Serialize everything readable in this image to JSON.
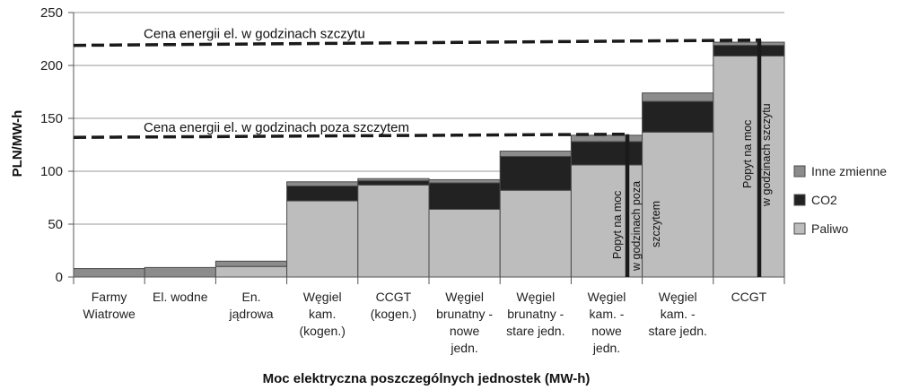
{
  "chart_data": {
    "type": "bar",
    "stacked": true,
    "variable_width": true,
    "title": "",
    "xlabel": "Moc elektryczna poszczególnych jednostek (MW-h)",
    "ylabel": "PLN/MW-h",
    "ylim": [
      0,
      250
    ],
    "yticks": [
      0,
      50,
      100,
      150,
      200,
      250
    ],
    "grid": true,
    "legend_position": "right",
    "categories": [
      [
        "Farmy",
        "Wiatrowe"
      ],
      [
        "El. wodne"
      ],
      [
        "En.",
        "jądrowa"
      ],
      [
        "Węgiel",
        "kam.",
        "(kogen.)"
      ],
      [
        "CCGT",
        "(kogen.)"
      ],
      [
        "Węgiel",
        "brunatny -",
        "nowe",
        "jedn."
      ],
      [
        "Węgiel",
        "brunatny -",
        "stare jedn."
      ],
      [
        "Węgiel",
        "kam. -",
        "nowe",
        "jedn."
      ],
      [
        "Węgiel",
        "kam. -",
        "stare jedn."
      ],
      [
        "CCGT"
      ]
    ],
    "series": [
      {
        "name": "Paliwo",
        "color": "#bdbdbd",
        "values": [
          0,
          0,
          10,
          72,
          87,
          64,
          82,
          106,
          137,
          209
        ]
      },
      {
        "name": "CO2",
        "color": "#222222",
        "values": [
          0,
          0,
          0,
          14,
          4,
          25,
          32,
          22,
          29,
          10
        ]
      },
      {
        "name": "Inne zmienne",
        "color": "#8c8c8c",
        "values": [
          8,
          9,
          5,
          4,
          2,
          3,
          5,
          6,
          8,
          3
        ]
      }
    ],
    "legend_order": [
      "Inne zmienne",
      "CO2",
      "Paliwo"
    ],
    "annotations": [
      {
        "text": "Cena energii el. w godzinach szczytu",
        "type": "dashed-line",
        "y_start": 219,
        "y_end": 224
      },
      {
        "text": "Cena energii el. w godzinach poza szczytem",
        "type": "dashed-line",
        "y_start": 132,
        "y_end": 135
      }
    ],
    "demand_lines": [
      {
        "lines": [
          "Popyt na moc",
          "w godzinach poza",
          "szczytem"
        ]
      },
      {
        "lines": [
          "Popyt na moc",
          "w godzinach szczytu"
        ]
      }
    ]
  }
}
